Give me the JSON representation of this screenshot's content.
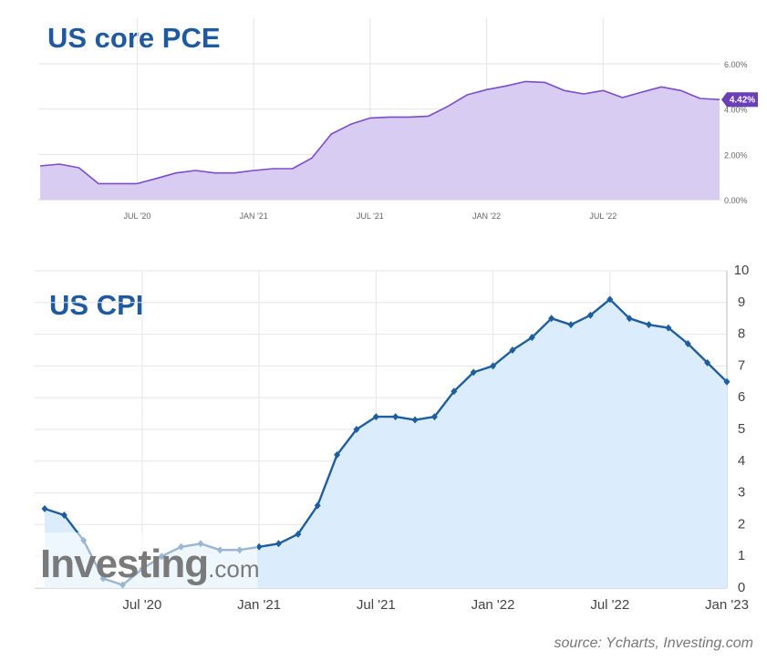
{
  "chart_data": [
    {
      "type": "area",
      "title": "US core PCE",
      "categories": [
        null,
        null,
        null,
        null,
        null,
        "JUL '20",
        null,
        null,
        null,
        null,
        null,
        "JAN '21",
        null,
        null,
        null,
        null,
        null,
        "JUL '21",
        null,
        null,
        null,
        null,
        null,
        "JAN '22",
        null,
        null,
        null,
        null,
        null,
        "JUL '22",
        null,
        null,
        null,
        null,
        null,
        null
      ],
      "series": [
        {
          "name": "US core PCE",
          "color": "#7d4cc9",
          "fill": "#d8ccf3",
          "values": [
            1.49,
            1.57,
            1.41,
            0.71,
            0.71,
            0.71,
            0.94,
            1.18,
            1.29,
            1.18,
            1.18,
            1.29,
            1.37,
            1.37,
            1.84,
            2.9,
            3.33,
            3.61,
            3.65,
            3.65,
            3.69,
            4.12,
            4.63,
            4.86,
            5.02,
            5.22,
            5.18,
            4.82,
            4.67,
            4.82,
            4.51,
            4.75,
            4.98,
            4.82,
            4.47,
            4.42
          ],
          "value_labels": [
            null,
            null,
            null,
            null,
            null,
            null,
            null,
            null,
            null,
            null,
            null,
            null,
            null,
            null,
            null,
            null,
            null,
            null,
            null,
            null,
            null,
            null,
            null,
            null,
            null,
            null,
            null,
            null,
            null,
            null,
            null,
            null,
            null,
            null,
            null,
            "4.42%"
          ]
        }
      ],
      "ylim": [
        0,
        6
      ],
      "yticks": [
        {
          "value": 0,
          "label": "0.00%"
        },
        {
          "value": 2,
          "label": "2.00%"
        },
        {
          "value": 4,
          "label": "4.00%"
        },
        {
          "value": 6,
          "label": "6.00%"
        }
      ],
      "grid": true,
      "markers": false
    },
    {
      "type": "area",
      "title": "US CPI",
      "categories": [
        null,
        null,
        null,
        null,
        null,
        "Jul '20",
        null,
        null,
        null,
        null,
        null,
        "Jan '21",
        null,
        null,
        null,
        null,
        null,
        "Jul '21",
        null,
        null,
        null,
        null,
        null,
        "Jan '22",
        null,
        null,
        null,
        null,
        null,
        "Jul '22",
        null,
        null,
        null,
        null,
        null,
        "Jan '23"
      ],
      "series": [
        {
          "name": "US CPI",
          "color": "#1f5e9e",
          "fill": "#dbedfd",
          "values": [
            2.5,
            2.3,
            1.5,
            0.3,
            0.1,
            0.6,
            1.0,
            1.3,
            1.4,
            1.2,
            1.2,
            1.3,
            1.4,
            1.7,
            2.6,
            4.2,
            5.0,
            5.4,
            5.4,
            5.3,
            5.4,
            6.2,
            6.8,
            7.0,
            7.5,
            7.9,
            8.5,
            8.3,
            8.6,
            9.1,
            8.5,
            8.3,
            8.2,
            7.7,
            7.1,
            6.5
          ]
        }
      ],
      "ylim": [
        0,
        10
      ],
      "yticks": [
        0,
        1,
        2,
        3,
        4,
        5,
        6,
        7,
        8,
        9,
        10
      ],
      "grid": true,
      "markers": true,
      "watermark_brand": "Investing",
      "watermark_suffix": ".com"
    }
  ],
  "source": "source: Ycharts, Investing.com"
}
